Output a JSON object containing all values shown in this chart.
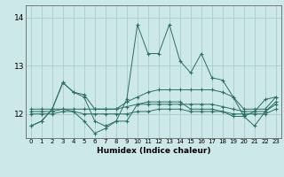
{
  "xlabel": "Humidex (Indice chaleur)",
  "xlim": [
    -0.5,
    23.5
  ],
  "ylim": [
    11.5,
    14.25
  ],
  "yticks": [
    12,
    13,
    14
  ],
  "xticks": [
    0,
    1,
    2,
    3,
    4,
    5,
    6,
    7,
    8,
    9,
    10,
    11,
    12,
    13,
    14,
    15,
    16,
    17,
    18,
    19,
    20,
    21,
    22,
    23
  ],
  "bg_color": "#cce8e8",
  "grid_color": "#aacccc",
  "line_color": "#2a6e65",
  "y_spike": [
    11.75,
    11.85,
    12.1,
    12.65,
    12.45,
    12.35,
    11.85,
    11.75,
    11.85,
    12.3,
    13.85,
    13.25,
    13.25,
    13.85,
    13.1,
    12.85,
    13.25,
    12.75,
    12.7,
    12.35,
    11.95,
    12.05,
    12.3,
    12.35
  ],
  "y_high": [
    12.1,
    12.1,
    12.1,
    12.65,
    12.45,
    12.4,
    12.1,
    12.1,
    12.1,
    12.25,
    12.35,
    12.45,
    12.5,
    12.5,
    12.5,
    12.5,
    12.5,
    12.5,
    12.45,
    12.35,
    12.1,
    12.1,
    12.1,
    12.35
  ],
  "y_mid": [
    12.05,
    12.05,
    12.05,
    12.1,
    12.1,
    12.1,
    12.1,
    12.1,
    12.1,
    12.15,
    12.2,
    12.2,
    12.2,
    12.2,
    12.2,
    12.2,
    12.2,
    12.2,
    12.15,
    12.1,
    12.05,
    12.05,
    12.05,
    12.2
  ],
  "y_low": [
    12.0,
    12.0,
    12.0,
    12.05,
    12.05,
    12.0,
    12.0,
    12.0,
    12.0,
    12.0,
    12.05,
    12.05,
    12.1,
    12.1,
    12.1,
    12.05,
    12.05,
    12.05,
    12.05,
    12.0,
    12.0,
    12.0,
    12.0,
    12.1
  ],
  "y_min": [
    11.75,
    11.85,
    12.1,
    12.1,
    12.05,
    11.85,
    11.6,
    11.7,
    11.85,
    11.85,
    12.2,
    12.25,
    12.25,
    12.25,
    12.25,
    12.1,
    12.1,
    12.1,
    12.05,
    11.95,
    11.95,
    11.75,
    12.05,
    12.25
  ]
}
